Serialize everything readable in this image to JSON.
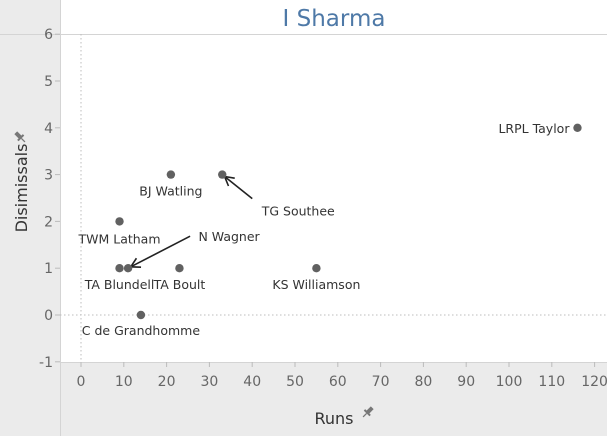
{
  "chart_data": {
    "type": "scatter",
    "title": "I Sharma",
    "xlabel": "Runs",
    "ylabel": "Disimissals",
    "xlim": [
      -5,
      122
    ],
    "ylim": [
      -1.15,
      6.2
    ],
    "x_ticks": [
      0,
      10,
      20,
      30,
      40,
      50,
      60,
      70,
      80,
      90,
      100,
      110,
      120
    ],
    "y_ticks": [
      -1,
      0,
      1,
      2,
      3,
      4,
      5,
      6
    ],
    "grid": false,
    "point_color": "#616161",
    "title_color": "#4e79a7",
    "points": [
      {
        "label": "LRPL Taylor",
        "x": 116,
        "y": 4
      },
      {
        "label": "BJ Watling",
        "x": 21,
        "y": 3
      },
      {
        "label": "TG Southee",
        "x": 33,
        "y": 3
      },
      {
        "label": "TWM Latham",
        "x": 9,
        "y": 2
      },
      {
        "label": "N Wagner",
        "x": 11,
        "y": 1
      },
      {
        "label": "TA Blundell",
        "x": 9,
        "y": 1
      },
      {
        "label": "TA Boult",
        "x": 23,
        "y": 1
      },
      {
        "label": "KS Williamson",
        "x": 55,
        "y": 1
      },
      {
        "label": "C de Grandhomme",
        "x": 14,
        "y": 0
      }
    ]
  }
}
